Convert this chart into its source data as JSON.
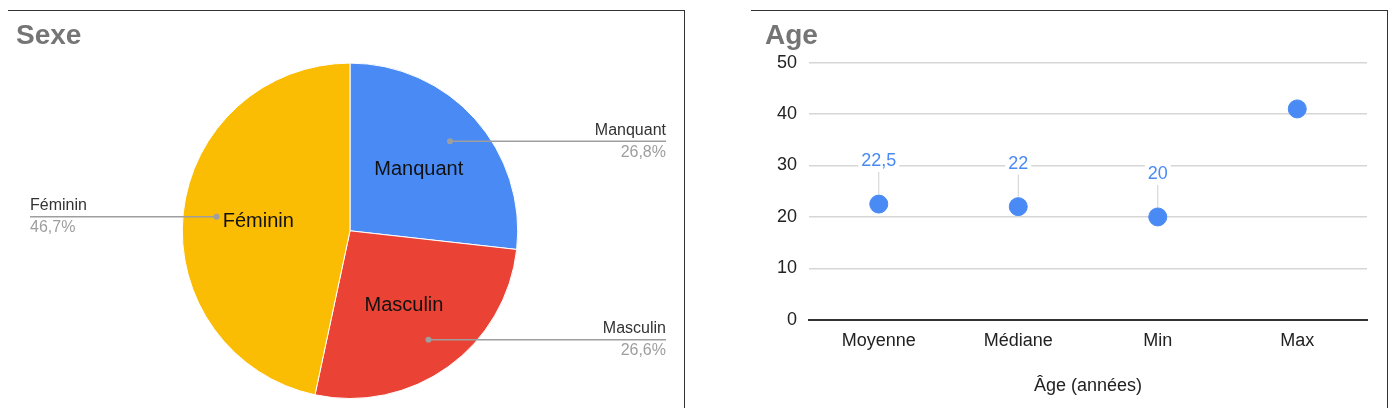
{
  "chart_data": [
    {
      "type": "pie",
      "title": "Sexe",
      "categories": [
        "Manquant",
        "Masculin",
        "Féminin"
      ],
      "values": [
        26.8,
        26.6,
        46.7
      ],
      "colors": [
        "#4a8af4",
        "#ea4335",
        "#fbbc04"
      ],
      "value_labels": [
        "26,8%",
        "26,6%",
        "46,7%"
      ],
      "legend": false
    },
    {
      "type": "scatter",
      "title": "Age",
      "categories": [
        "Moyenne",
        "Médiane",
        "Min",
        "Max"
      ],
      "xlabel": "Âge (années)",
      "series": [
        {
          "color": "#4a8af4",
          "values": [
            22.5,
            22,
            20,
            41
          ],
          "value_labels": [
            "22,5",
            "22",
            "20",
            null
          ]
        }
      ],
      "ylim": [
        0,
        50
      ],
      "yticks": [
        0,
        10,
        20,
        30,
        40,
        50
      ],
      "grid": "y",
      "marker": "circle",
      "legend": false
    }
  ]
}
